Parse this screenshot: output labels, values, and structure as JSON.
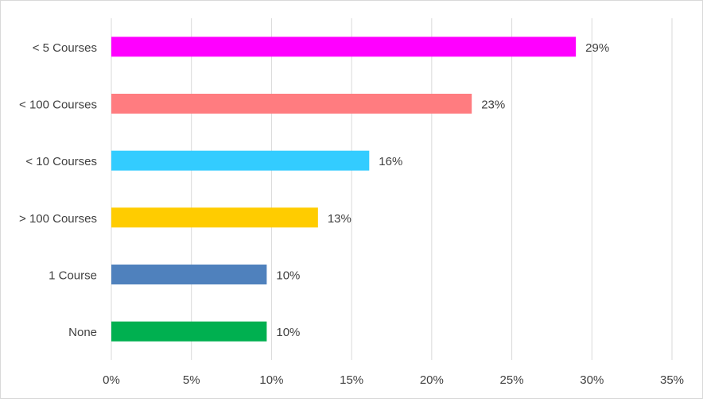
{
  "chart_data": {
    "type": "bar",
    "orientation": "horizontal",
    "categories": [
      "< 5 Courses",
      "< 100 Courses",
      "< 10 Courses",
      "> 100 Courses",
      "1 Course",
      "None"
    ],
    "values": [
      29,
      22.5,
      16.1,
      12.9,
      9.7,
      9.7
    ],
    "data_labels": [
      "29%",
      "23%",
      "16%",
      "13%",
      "10%",
      "10%"
    ],
    "colors": [
      "#FF00FF",
      "#FF7C80",
      "#33CCFF",
      "#FFCC00",
      "#4F81BD",
      "#00B050"
    ],
    "xlim": [
      0,
      35
    ],
    "xticks": [
      0,
      5,
      10,
      15,
      20,
      25,
      30,
      35
    ],
    "xtick_labels": [
      "0%",
      "5%",
      "10%",
      "15%",
      "20%",
      "25%",
      "30%",
      "35%"
    ],
    "gridlines": "vertical",
    "legend": "none",
    "title": "",
    "xlabel": "",
    "ylabel": ""
  }
}
